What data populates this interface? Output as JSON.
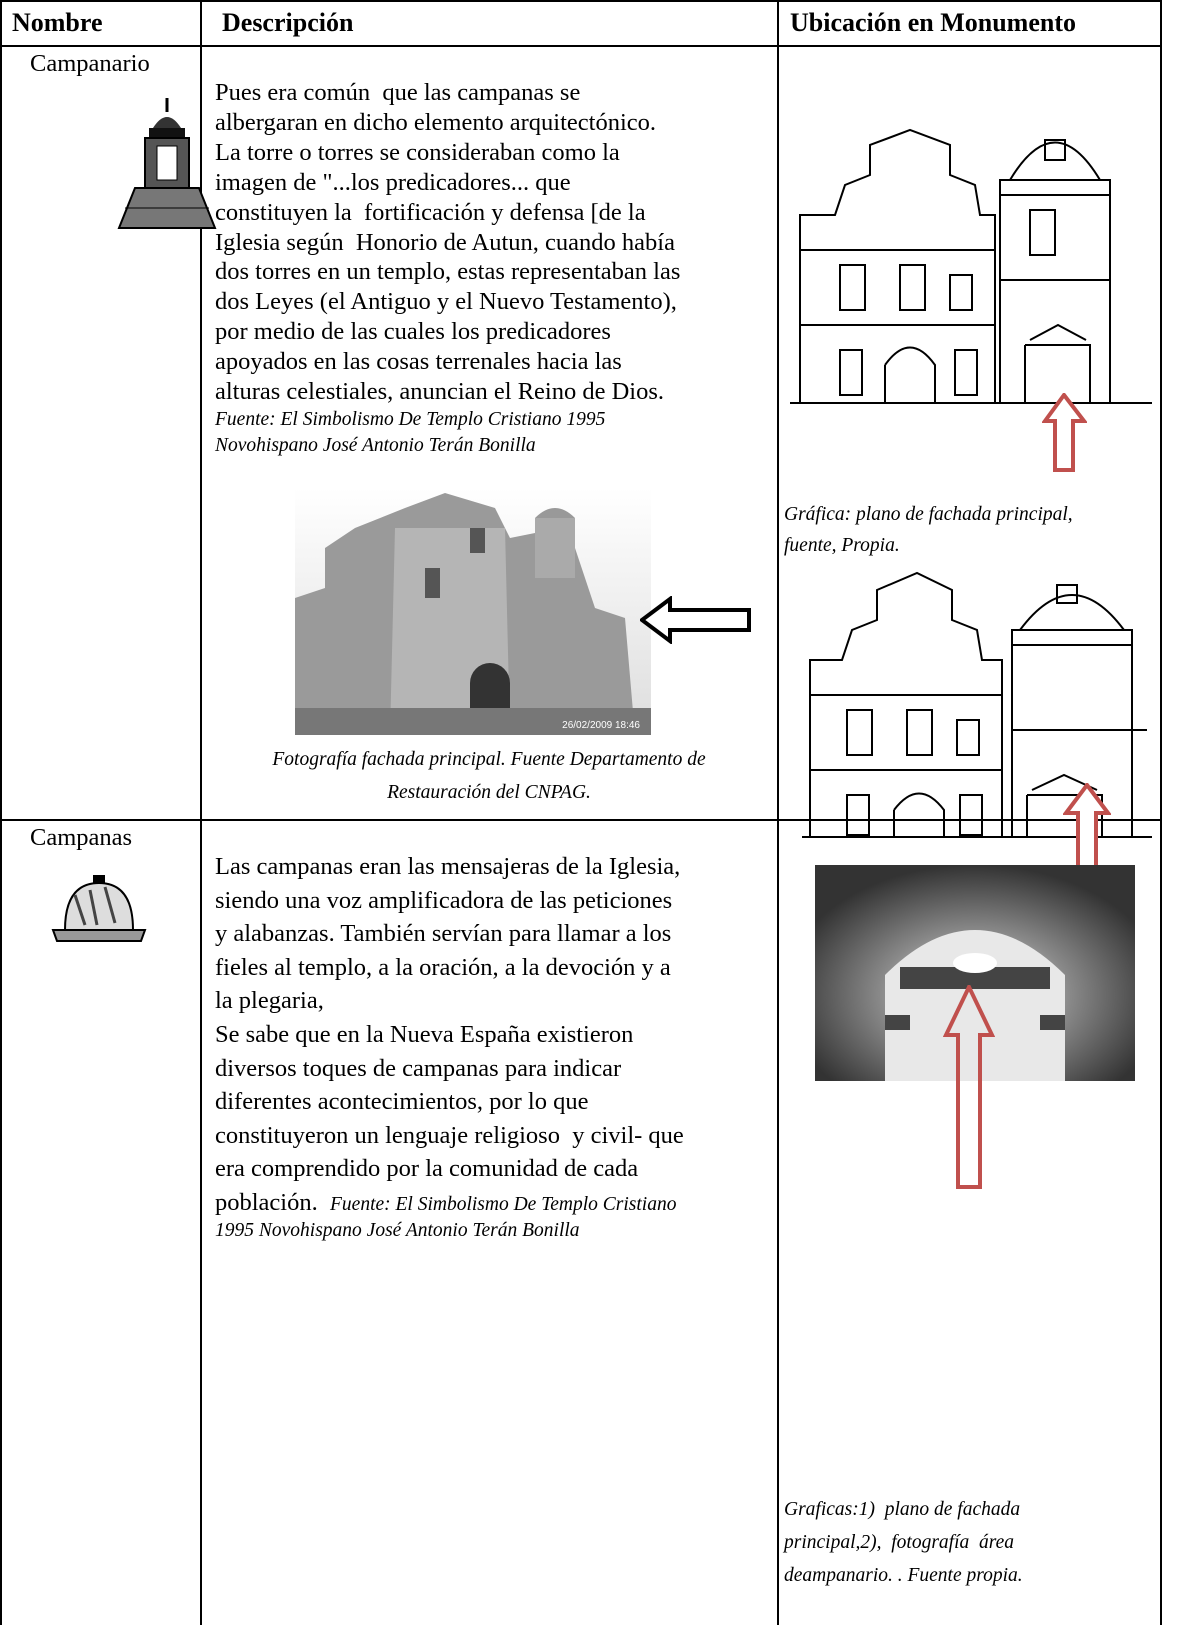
{
  "header": [
    "Nombre",
    "Descripción",
    "Ubicación en Monumento"
  ],
  "rows": [
    {
      "name": "Campanario",
      "description": [
        "Pues era común  que las campanas se",
        "albergaran en dicho elemento arquitectónico.",
        "La torre o torres se consideraban como la",
        "imagen de \"...los predicadores... que",
        "constituyen la  fortificación y defensa [de la",
        "Iglesia según  Honorio de Autun, cuando había",
        "dos torres en un templo, estas representaban las",
        "dos Leyes (el Antiguo y el Nuevo Testamento),",
        "por medio de las cuales los predicadores",
        "apoyados en las cosas terrenales hacia las",
        "alturas celestiales, anuncian el Reino de Dios."
      ],
      "source": [
        "Fuente: El Simbolismo De Templo Cristiano 1995",
        "Novohispano José Antonio Terán Bonilla"
      ],
      "photo_timestamp": "26/02/2009 18:46",
      "photo_caption": [
        "Fotografía fachada principal. Fuente Departamento de",
        "Restauración del CNPAG."
      ],
      "location_caption": [
        "Gráfica: plano de fachada principal,",
        "fuente, Propia."
      ]
    },
    {
      "name": "Campanas",
      "description": [
        "Las campanas eran las mensajeras de la Iglesia,",
        "siendo una voz amplificadora de las peticiones",
        "y alabanzas. También servían para llamar a los",
        "fieles al templo, a la oración, a la devoción y a",
        "la plegaria,",
        "Se sabe que en la Nueva España existieron",
        "diversos toques de campanas para indicar",
        "diferentes acontecimientos, por lo que",
        "constituyeron un lenguaje religioso  y civil- que",
        "era comprendido por la comunidad de cada",
        "población."
      ],
      "source": [
        "Fuente: El Simbolismo De Templo Cristiano",
        "1995 Novohispano José Antonio Terán Bonilla"
      ],
      "location_caption": [
        "Graficas:1)  plano de fachada",
        "principal,2),  fotografía  área",
        "deampanario. . Fuente propia."
      ]
    }
  ]
}
